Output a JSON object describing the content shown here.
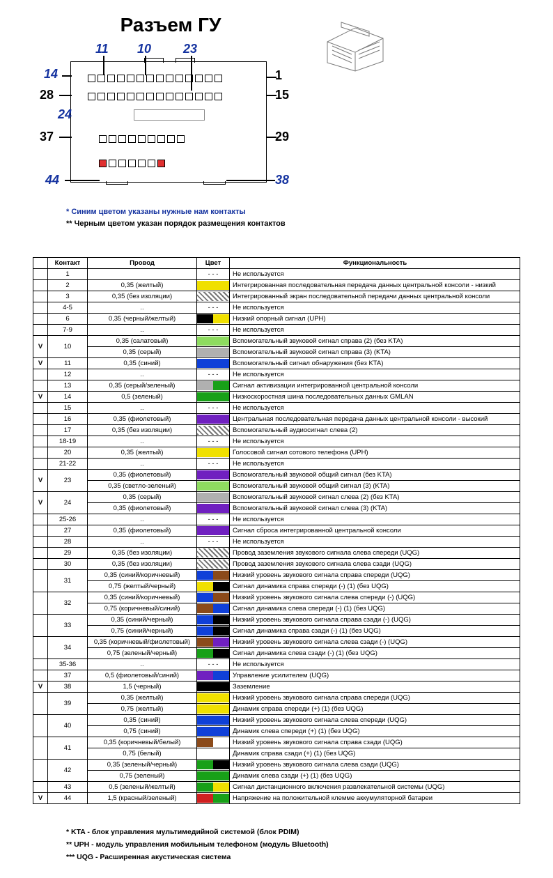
{
  "title": "Разъем ГУ",
  "notes": {
    "line1_prefix": "* ",
    "line1": "Синим цветом указаны нужные нам контакты",
    "line2_prefix": "** ",
    "line2": "Черным цветом указан порядок размещения контактов"
  },
  "diagram_labels": {
    "p11": "11",
    "p10": "10",
    "p23": "23",
    "p14": "14",
    "p1": "1",
    "p28": "28",
    "p15": "15",
    "p24": "24",
    "p37": "37",
    "p29": "29",
    "p44": "44",
    "p38": "38"
  },
  "table": {
    "headers": {
      "contact": "Контакт",
      "wire": "Провод",
      "color": "Цвет",
      "func": "Функциональность"
    },
    "rows": [
      {
        "v": "",
        "contact": "1",
        "wire": "",
        "color_text": "- - -",
        "func": "Не используется"
      },
      {
        "v": "",
        "contact": "2",
        "wire": "0,35 (желтый)",
        "c": [
          "#f0e000"
        ],
        "func": "Интегрированная последовательная передача данных центральной консоли - низкий"
      },
      {
        "v": "",
        "contact": "3",
        "wire": "0,35 (без изоляции)",
        "color_hatch": true,
        "func": "Интегрированный экран последовательной передачи данных центральной консоли"
      },
      {
        "v": "",
        "contact": "4-5",
        "wire": "..",
        "color_text": "- - -",
        "func": "Не используется"
      },
      {
        "v": "",
        "contact": "6",
        "wire": "0,35 (черный/желтый)",
        "c": [
          "#000000",
          "#f0e000"
        ],
        "func": "Низкий опорный сигнал (UPH)"
      },
      {
        "v": "",
        "contact": "7-9",
        "wire": "..",
        "color_text": "- - -",
        "func": "Не используется"
      },
      {
        "v": "V",
        "contact": "10",
        "span": 2,
        "wire": "0,35 (салатовый)",
        "c": [
          "#8edc60"
        ],
        "func": "Вспомогательный звуковой сигнал справа (2) (без KTA)"
      },
      {
        "wire": "0,35 (серый)",
        "c": [
          "#b0b0b0"
        ],
        "func": "Вспомогательный звуковой сигнал справа (3) (KTA)"
      },
      {
        "v": "V",
        "contact": "11",
        "wire": "0,35 (синий)",
        "c": [
          "#1040d8"
        ],
        "func": "Вспомогательный сигнал обнаружения (без KTA)"
      },
      {
        "v": "",
        "contact": "12",
        "wire": "..",
        "color_text": "- - -",
        "func": "Не используется"
      },
      {
        "v": "",
        "contact": "13",
        "wire": "0,35 (серый/зеленый)",
        "c": [
          "#b0b0b0",
          "#18a018"
        ],
        "func": "Сигнал активизации интегрированной центральной консоли"
      },
      {
        "v": "V",
        "contact": "14",
        "wire": "0,5 (зеленый)",
        "c": [
          "#18a018"
        ],
        "func": "Низкоскоростная шина последовательных данных GMLAN"
      },
      {
        "v": "",
        "contact": "15",
        "wire": "..",
        "color_text": "- - -",
        "func": "Не используется"
      },
      {
        "v": "",
        "contact": "16",
        "wire": "0,35 (фиолетовый)",
        "c": [
          "#7020c0"
        ],
        "func": "Центральная последовательная передача данных центральной консоли - высокий"
      },
      {
        "v": "",
        "contact": "17",
        "wire": "0,35 (без изоляции)",
        "color_hatch": true,
        "func": "Вспомогательный аудиосигнал слева (2)"
      },
      {
        "v": "",
        "contact": "18-19",
        "wire": "..",
        "color_text": "- - -",
        "func": "Не используется"
      },
      {
        "v": "",
        "contact": "20",
        "wire": "0,35 (желтый)",
        "c": [
          "#f0e000"
        ],
        "func": "Голосовой сигнал сотового телефона (UPH)"
      },
      {
        "v": "",
        "contact": "21-22",
        "wire": "..",
        "color_text": "- - -",
        "func": "Не используется"
      },
      {
        "v": "V",
        "contact": "23",
        "span": 2,
        "wire": "0,35 (фиолетовый)",
        "c": [
          "#7020c0"
        ],
        "func": "Вспомогательный звуковой общий сигнал (без KTA)"
      },
      {
        "wire": "0,35 (светло-зеленый)",
        "c": [
          "#8edc60"
        ],
        "func": "Вспомогательный звуковой общий сигнал (3) (KTA)"
      },
      {
        "v": "V",
        "contact": "24",
        "span": 2,
        "wire": "0,35 (серый)",
        "c": [
          "#b0b0b0"
        ],
        "func": "Вспомогательный звуковой сигнал слева (2) (без KTA)"
      },
      {
        "wire": "0,35 (фиолетовый)",
        "c": [
          "#7020c0"
        ],
        "func": "Вспомогательный звуковой сигнал слева (3) (KTA)"
      },
      {
        "v": "",
        "contact": "25-26",
        "wire": "..",
        "color_text": "- - -",
        "func": "Не используется"
      },
      {
        "v": "",
        "contact": "27",
        "wire": "0,35 (фиолетовый)",
        "c": [
          "#7020c0"
        ],
        "func": "Сигнал сброса интегрированной центральной консоли"
      },
      {
        "v": "",
        "contact": "28",
        "wire": "..",
        "color_text": "- - -",
        "func": "Не используется"
      },
      {
        "v": "",
        "contact": "29",
        "wire": "0,35 (без изоляции)",
        "color_hatch": true,
        "func": "Провод заземления звукового сигнала слева спереди (UQG)"
      },
      {
        "v": "",
        "contact": "30",
        "wire": "0,35 (без изоляции)",
        "color_hatch": true,
        "func": "Провод заземления звукового сигнала слева сзади (UQG)"
      },
      {
        "v": "",
        "contact": "31",
        "span": 2,
        "wire": "0,35 (синий/коричневый)",
        "c": [
          "#1040d8",
          "#8b4a1a"
        ],
        "func": "Низкий уровень звукового сигнала справа спереди (UQG)"
      },
      {
        "wire": "0,75 (желтый/черный)",
        "c": [
          "#f0e000",
          "#000000"
        ],
        "func": "Сигнал динамика справа спереди (-) (1) (без UQG)"
      },
      {
        "v": "",
        "contact": "32",
        "span": 2,
        "wire": "0,35 (синий/коричневый)",
        "c": [
          "#1040d8",
          "#8b4a1a"
        ],
        "func": "Низкий уровень звукового сигнала слева спереди (-) (UQG)"
      },
      {
        "wire": "0,75 (коричневый/синий)",
        "c": [
          "#8b4a1a",
          "#1040d8"
        ],
        "func": "Сигнал динамика слева спереди (-) (1) (без UQG)"
      },
      {
        "v": "",
        "contact": "33",
        "span": 2,
        "wire": "0,35 (синий/черный)",
        "c": [
          "#1040d8",
          "#000000"
        ],
        "func": "Низкий уровень звукового сигнала справа сзади (-) (UQG)"
      },
      {
        "wire": "0,75 (синий/черный)",
        "c": [
          "#1040d8",
          "#000000"
        ],
        "func": "Сигнал динамика справа сзади (-) (1) (без UQG)"
      },
      {
        "v": "",
        "contact": "34",
        "span": 2,
        "wire": "0,35 (коричневый/фиолетовый)",
        "c": [
          "#8b4a1a",
          "#7020c0"
        ],
        "func": "Низкий уровень звукового сигнала слева сзади (-) (UQG)"
      },
      {
        "wire": "0,75 (зеленый/черный)",
        "c": [
          "#18a018",
          "#000000"
        ],
        "func": "Сигнал динамика слева сзади (-) (1) (без UQG)"
      },
      {
        "v": "",
        "contact": "35-36",
        "wire": "..",
        "color_text": "- - -",
        "func": "Не используется"
      },
      {
        "v": "",
        "contact": "37",
        "wire": "0,5 (фиолетовый/синий)",
        "c": [
          "#7020c0",
          "#1040d8"
        ],
        "func": "Управление усилителем (UQG)"
      },
      {
        "v": "V",
        "contact": "38",
        "wire": "1,5 (черный)",
        "c": [
          "#000000"
        ],
        "func": "Заземление"
      },
      {
        "v": "",
        "contact": "39",
        "span": 2,
        "wire": "0,35 (желтый)",
        "c": [
          "#f0e000"
        ],
        "func": "Низкий уровень звукового сигнала справа спереди (UQG)"
      },
      {
        "wire": "0,75 (желтый)",
        "c": [
          "#f0e000"
        ],
        "func": "Динамик справа спереди (+) (1) (без UQG)"
      },
      {
        "v": "",
        "contact": "40",
        "span": 2,
        "wire": "0,35 (синий)",
        "c": [
          "#1040d8"
        ],
        "func": "Низкий уровень звукового сигнала слева спереди (UQG)"
      },
      {
        "wire": "0,75 (синий)",
        "c": [
          "#1040d8"
        ],
        "func": "Динамик слева спереди (+) (1) (без UQG)"
      },
      {
        "v": "",
        "contact": "41",
        "span": 2,
        "wire": "0,35 (коричневый/белый)",
        "c": [
          "#8b4a1a",
          "#ffffff"
        ],
        "func": "Низкий уровень звукового сигнала справа сзади (UQG)"
      },
      {
        "wire": "0,75 (белый)",
        "c": [
          "#ffffff"
        ],
        "func": "Динамик справа сзади (+) (1) (без UQG)"
      },
      {
        "v": "",
        "contact": "42",
        "span": 2,
        "wire": "0,35 (зеленый/черный)",
        "c": [
          "#18a018",
          "#000000"
        ],
        "func": "Низкий уровень звукового сигнала слева сзади (UQG)"
      },
      {
        "wire": "0,75 (зеленый)",
        "c": [
          "#18a018"
        ],
        "func": "Динамик слева сзади (+) (1) (без UQG)"
      },
      {
        "v": "",
        "contact": "43",
        "wire": "0,5 (зеленый/желтый)",
        "c": [
          "#18a018",
          "#f0e000"
        ],
        "func": "Сигнал дистанционного включения развлекательной системы (UQG)"
      },
      {
        "v": "V",
        "contact": "44",
        "wire": "1,5 (красный/зеленый)",
        "c": [
          "#d02020",
          "#18a018"
        ],
        "func": "Напряжение на положительной клемме аккумуляторной батареи"
      }
    ]
  },
  "footnotes": {
    "f1": "* KTA - блок управления мультимедийной системой (блок PDIM)",
    "f2": "** UPH - модуль управления мобильным телефоном (модуль Bluetooth)",
    "f3": "*** UQG - Расширенная акустическая система"
  }
}
